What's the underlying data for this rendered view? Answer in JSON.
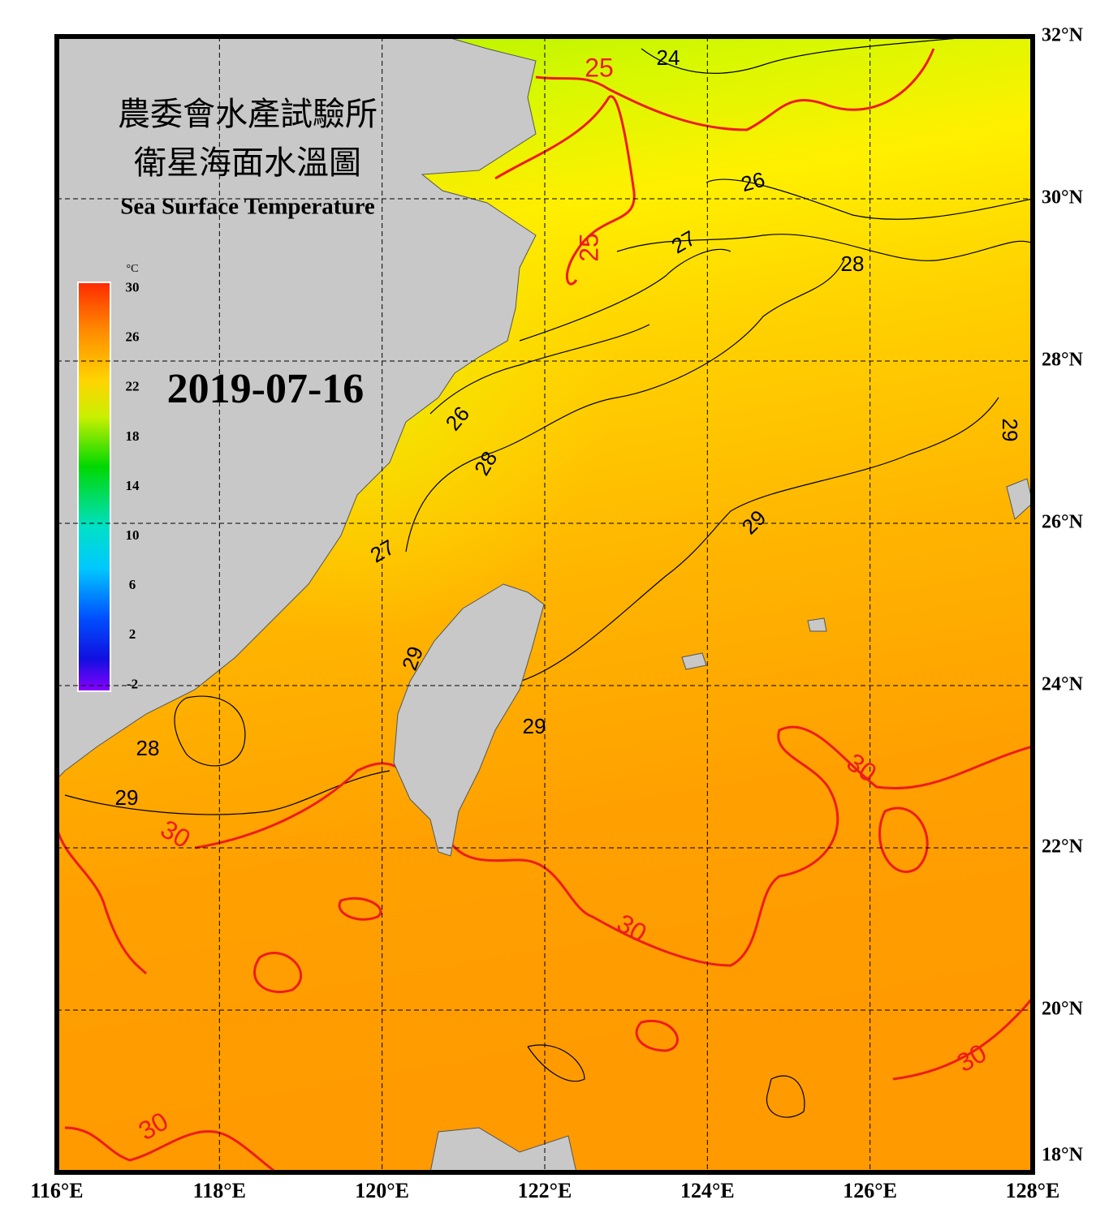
{
  "title": {
    "line1": "農委會水產試驗所",
    "line2": "衛星海面水溫圖",
    "line3": "Sea Surface Temperature"
  },
  "date": "2019-07-16",
  "colorbar": {
    "unit": "°C",
    "range": [
      -2.5,
      30.5
    ],
    "ticks": [
      30,
      26,
      22,
      18,
      14,
      10,
      6,
      2,
      -2
    ]
  },
  "map": {
    "xlim": [
      116,
      128
    ],
    "ylim": [
      18,
      32
    ],
    "xticks": [
      {
        "value": 116,
        "label": "116°E"
      },
      {
        "value": 118,
        "label": "118°E"
      },
      {
        "value": 120,
        "label": "120°E"
      },
      {
        "value": 122,
        "label": "122°E"
      },
      {
        "value": 124,
        "label": "124°E"
      },
      {
        "value": 126,
        "label": "126°E"
      },
      {
        "value": 128,
        "label": "128°E"
      }
    ],
    "yticks": [
      {
        "value": 32,
        "label": "32°N"
      },
      {
        "value": 30,
        "label": "30°N"
      },
      {
        "value": 28,
        "label": "28°N"
      },
      {
        "value": 26,
        "label": "26°N"
      },
      {
        "value": 24,
        "label": "24°N"
      },
      {
        "value": 22,
        "label": "22°N"
      },
      {
        "value": 20,
        "label": "20°N"
      },
      {
        "value": 18,
        "label": "18°N"
      }
    ],
    "grid": true
  },
  "contour_labels": {
    "black_color": "#000000",
    "red_color": "#ee1c1c",
    "black": [
      24,
      26,
      27,
      28,
      26,
      28,
      27,
      29,
      29,
      29,
      29,
      28,
      29
    ],
    "red": [
      25,
      25,
      30,
      30,
      30,
      30,
      30
    ]
  }
}
